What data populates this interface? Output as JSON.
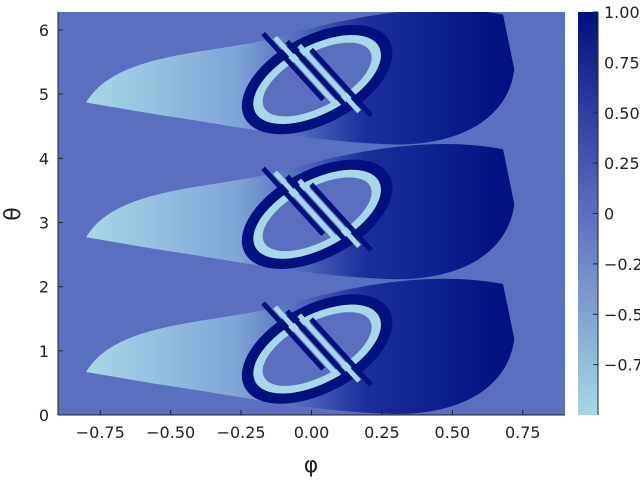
{
  "chart_data": {
    "type": "heatmap",
    "title": "",
    "xlabel": "φ",
    "ylabel": "θ",
    "xlim": [
      -0.9,
      0.9
    ],
    "ylim": [
      0,
      6.28
    ],
    "grid": false,
    "x_ticks": [
      {
        "value": -0.75,
        "label": "−0.75"
      },
      {
        "value": -0.5,
        "label": "−0.50"
      },
      {
        "value": -0.25,
        "label": "−0.25"
      },
      {
        "value": 0,
        "label": "0.00"
      },
      {
        "value": 0.25,
        "label": "0.25"
      },
      {
        "value": 0.5,
        "label": "0.50"
      },
      {
        "value": 0.75,
        "label": "0.75"
      }
    ],
    "y_ticks": [
      {
        "value": 0,
        "label": "0"
      },
      {
        "value": 1,
        "label": "1"
      },
      {
        "value": 2,
        "label": "2"
      },
      {
        "value": 3,
        "label": "3"
      },
      {
        "value": 4,
        "label": "4"
      },
      {
        "value": 5,
        "label": "5"
      },
      {
        "value": 6,
        "label": "6"
      }
    ],
    "colorbar": {
      "range": [
        -1,
        1
      ],
      "ticks": [
        {
          "value": 1,
          "label": "1.00"
        },
        {
          "value": 0.75,
          "label": "0.75"
        },
        {
          "value": 0.5,
          "label": "0.50"
        },
        {
          "value": 0.25,
          "label": "0.25"
        },
        {
          "value": 0,
          "label": "0"
        },
        {
          "value": -0.25,
          "label": "−0.25"
        },
        {
          "value": -0.5,
          "label": "−0.50"
        },
        {
          "value": -0.75,
          "label": "−0.75"
        }
      ],
      "colors": [
        "#a6d8e6",
        "#5b6fc0",
        "#00107e"
      ]
    },
    "background_value": 0,
    "bands": [
      {
        "center_theta": 0.95,
        "inner_value_range": [
          -1,
          1
        ]
      },
      {
        "center_theta": 3.05,
        "inner_value_range": [
          -1,
          1
        ]
      },
      {
        "center_theta": 5.15,
        "inner_value_range": [
          -1,
          1
        ]
      }
    ]
  }
}
